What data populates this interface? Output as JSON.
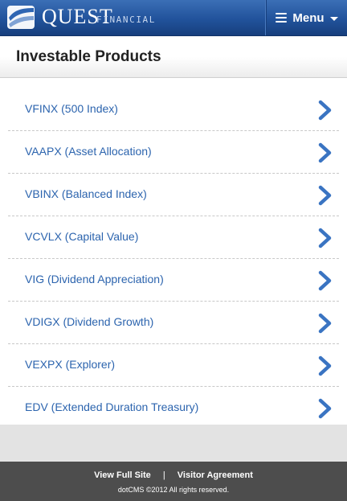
{
  "header": {
    "brand_main": "QUEST",
    "brand_sub": "FINANCIAL",
    "menu_label": "Menu"
  },
  "page": {
    "title": "Investable Products"
  },
  "products": [
    {
      "label": "VFINX (500 Index)"
    },
    {
      "label": "VAAPX (Asset Allocation)"
    },
    {
      "label": "VBINX (Balanced Index)"
    },
    {
      "label": "VCVLX (Capital Value)"
    },
    {
      "label": "VIG (Dividend Appreciation)"
    },
    {
      "label": "VDIGX (Dividend Growth)"
    },
    {
      "label": "VEXPX (Explorer)"
    },
    {
      "label": "EDV (Extended Duration Treasury)"
    }
  ],
  "footer": {
    "full_site": "View Full Site",
    "separator": "|",
    "visitor_agreement": "Visitor Agreement",
    "copyright": "dotCMS ©2012 All rights reserved."
  },
  "colors": {
    "header_blue": "#21529b",
    "link_blue": "#2c64ae",
    "chevron_blue": "#3a74c2",
    "footer_gray": "#4d4d4d"
  },
  "icons": {
    "logo": "quest-wave-logo-icon",
    "menu": "hamburger-icon",
    "dropdown": "caret-down-icon",
    "item_arrow": "chevron-right-icon"
  }
}
